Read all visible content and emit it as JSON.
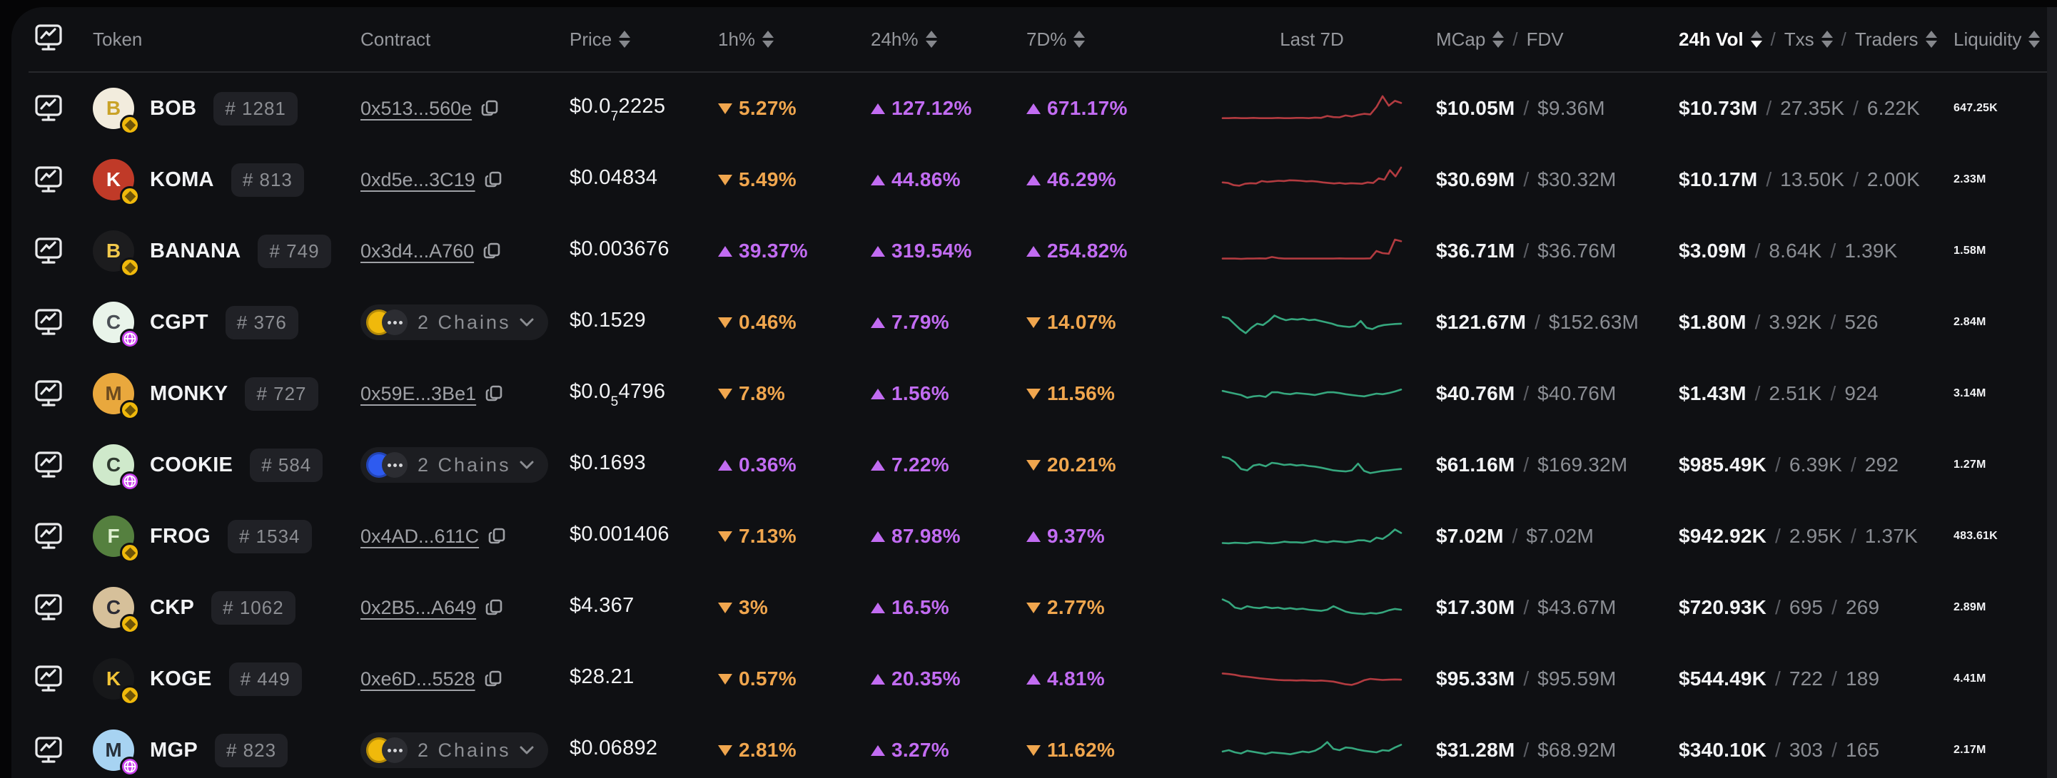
{
  "ui": {
    "separator": "/"
  },
  "colors": {
    "up": "#c26cf2",
    "down": "#f0a64e",
    "spark_red": "#b23b40",
    "spark_green": "#36a77e"
  },
  "header": {
    "token": "Token",
    "contract": "Contract",
    "price": "Price",
    "h1": "1h%",
    "h24": "24h%",
    "d7": "7D%",
    "last7d": "Last 7D",
    "mcap": "MCap",
    "fdv": "FDV",
    "vol": "24h Vol",
    "txs": "Txs",
    "traders": "Traders",
    "liquidity": "Liquidity",
    "active_sort": "24h Vol",
    "active_dir": "desc"
  },
  "rows": [
    {
      "name": "BOB",
      "rank": "# 1281",
      "avatar": {
        "letter": "B",
        "bg": "#f2ecdd",
        "fg": "#c9a227",
        "badge": "bnb"
      },
      "contract": {
        "type": "address",
        "text": "0x513...560e"
      },
      "price": {
        "head": "$0.0",
        "sub": "7",
        "tail": "2225"
      },
      "h1": {
        "dir": "down",
        "value": "5.27%"
      },
      "h24": {
        "dir": "up",
        "value": "127.12%"
      },
      "d7": {
        "dir": "up",
        "value": "671.17%"
      },
      "spark": {
        "trend": "red",
        "points": [
          14,
          14,
          15,
          14,
          14,
          15,
          14,
          14,
          14,
          15,
          14,
          14,
          15,
          15,
          14,
          16,
          15,
          22,
          18,
          17,
          24,
          20,
          26,
          30,
          28,
          55,
          95,
          60,
          78,
          70
        ]
      },
      "mcap": "$10.05M",
      "fdv": "$9.36M",
      "vol": "$10.73M",
      "txs": "27.35K",
      "traders": "6.22K",
      "liquidity": "647.25K"
    },
    {
      "name": "KOMA",
      "rank": "# 813",
      "avatar": {
        "letter": "K",
        "bg": "#c03a28",
        "fg": "#ffffff",
        "badge": "bnb"
      },
      "contract": {
        "type": "address",
        "text": "0xd5e...3C19"
      },
      "price": {
        "head": "$0.04834",
        "sub": "",
        "tail": ""
      },
      "h1": {
        "dir": "down",
        "value": "5.49%"
      },
      "h24": {
        "dir": "up",
        "value": "44.86%"
      },
      "d7": {
        "dir": "up",
        "value": "46.29%"
      },
      "spark": {
        "trend": "red",
        "points": [
          40,
          38,
          30,
          28,
          35,
          37,
          36,
          45,
          42,
          44,
          46,
          45,
          48,
          47,
          46,
          44,
          45,
          43,
          40,
          38,
          36,
          38,
          35,
          37,
          36,
          35,
          40,
          38,
          55,
          50,
          85,
          62,
          95
        ]
      },
      "mcap": "$30.69M",
      "fdv": "$30.32M",
      "vol": "$10.17M",
      "txs": "13.50K",
      "traders": "2.00K",
      "liquidity": "2.33M"
    },
    {
      "name": "BANANA",
      "rank": "# 749",
      "avatar": {
        "letter": "B",
        "bg": "#1c1c1e",
        "fg": "#f2c94c",
        "badge": "bnb"
      },
      "contract": {
        "type": "address",
        "text": "0x3d4...A760"
      },
      "price": {
        "head": "$0.003676",
        "sub": "",
        "tail": ""
      },
      "h1": {
        "dir": "up",
        "value": "39.37%"
      },
      "h24": {
        "dir": "up",
        "value": "319.54%"
      },
      "d7": {
        "dir": "up",
        "value": "254.82%"
      },
      "spark": {
        "trend": "red",
        "points": [
          22,
          22,
          22,
          21,
          22,
          22,
          23,
          22,
          28,
          24,
          22,
          22,
          22,
          22,
          22,
          22,
          22,
          22,
          22,
          23,
          22,
          22,
          22,
          22,
          23,
          50,
          42,
          40,
          92,
          86
        ]
      },
      "mcap": "$36.71M",
      "fdv": "$36.76M",
      "vol": "$3.09M",
      "txs": "8.64K",
      "traders": "1.39K",
      "liquidity": "1.58M"
    },
    {
      "name": "CGPT",
      "rank": "# 376",
      "avatar": {
        "letter": "C",
        "bg": "#e9f4ea",
        "fg": "#4a4f55",
        "badge": "globe"
      },
      "contract": {
        "type": "chains",
        "text": "2 Chains",
        "coin": "#f0b90b"
      },
      "price": {
        "head": "$0.1529",
        "sub": "",
        "tail": ""
      },
      "h1": {
        "dir": "down",
        "value": "0.46%"
      },
      "h24": {
        "dir": "up",
        "value": "7.79%"
      },
      "d7": {
        "dir": "down",
        "value": "14.07%"
      },
      "spark": {
        "trend": "green",
        "points": [
          70,
          65,
          45,
          25,
          10,
          30,
          45,
          40,
          55,
          75,
          65,
          58,
          62,
          60,
          63,
          58,
          60,
          55,
          50,
          45,
          38,
          35,
          33,
          36,
          55,
          30,
          25,
          35,
          40,
          42,
          44,
          45
        ]
      },
      "mcap": "$121.67M",
      "fdv": "$152.63M",
      "vol": "$1.80M",
      "txs": "3.92K",
      "traders": "526",
      "liquidity": "2.84M"
    },
    {
      "name": "MONKY",
      "rank": "# 727",
      "avatar": {
        "letter": "M",
        "bg": "#e9a83d",
        "fg": "#6b4a1f",
        "badge": "bnb"
      },
      "contract": {
        "type": "address",
        "text": "0x59E...3Be1"
      },
      "price": {
        "head": "$0.0",
        "sub": "5",
        "tail": "4796"
      },
      "h1": {
        "dir": "down",
        "value": "7.8%"
      },
      "h24": {
        "dir": "up",
        "value": "1.56%"
      },
      "d7": {
        "dir": "down",
        "value": "11.56%"
      },
      "spark": {
        "trend": "green",
        "points": [
          60,
          55,
          50,
          45,
          35,
          40,
          42,
          38,
          55,
          55,
          50,
          48,
          52,
          50,
          48,
          45,
          50,
          55,
          55,
          52,
          48,
          45,
          42,
          40,
          45,
          50,
          48,
          52,
          58,
          65
        ]
      },
      "mcap": "$40.76M",
      "fdv": "$40.76M",
      "vol": "$1.43M",
      "txs": "2.51K",
      "traders": "924",
      "liquidity": "3.14M"
    },
    {
      "name": "COOKIE",
      "rank": "# 584",
      "avatar": {
        "letter": "C",
        "bg": "#cfe9cb",
        "fg": "#2f3a2f",
        "badge": "globe"
      },
      "contract": {
        "type": "chains",
        "text": "2 Chains",
        "coin": "#2e5bf0"
      },
      "price": {
        "head": "$0.1693",
        "sub": "",
        "tail": ""
      },
      "h1": {
        "dir": "up",
        "value": "0.36%"
      },
      "h24": {
        "dir": "up",
        "value": "7.22%"
      },
      "d7": {
        "dir": "down",
        "value": "20.21%"
      },
      "spark": {
        "trend": "green",
        "points": [
          80,
          75,
          60,
          35,
          30,
          48,
          52,
          45,
          58,
          55,
          50,
          52,
          48,
          50,
          46,
          44,
          40,
          35,
          30,
          28,
          26,
          30,
          55,
          28,
          20,
          24,
          28,
          30,
          33,
          35
        ]
      },
      "mcap": "$61.16M",
      "fdv": "$169.32M",
      "vol": "$985.49K",
      "txs": "6.39K",
      "traders": "292",
      "liquidity": "1.27M"
    },
    {
      "name": "FROG",
      "rank": "# 1534",
      "avatar": {
        "letter": "F",
        "bg": "#55803f",
        "fg": "#dff0d0",
        "badge": "bnb"
      },
      "contract": {
        "type": "address",
        "text": "0x4AD...611C"
      },
      "price": {
        "head": "$0.001406",
        "sub": "",
        "tail": ""
      },
      "h1": {
        "dir": "down",
        "value": "7.13%"
      },
      "h24": {
        "dir": "up",
        "value": "87.98%"
      },
      "d7": {
        "dir": "up",
        "value": "9.37%"
      },
      "spark": {
        "trend": "green",
        "points": [
          25,
          24,
          26,
          25,
          24,
          28,
          28,
          25,
          24,
          26,
          30,
          28,
          28,
          26,
          30,
          35,
          30,
          28,
          32,
          30,
          28,
          30,
          35,
          35,
          30,
          45,
          40,
          55,
          75,
          62
        ]
      },
      "mcap": "$7.02M",
      "fdv": "$7.02M",
      "vol": "$942.92K",
      "txs": "2.95K",
      "traders": "1.37K",
      "liquidity": "483.61K"
    },
    {
      "name": "CKP",
      "rank": "# 1062",
      "avatar": {
        "letter": "C",
        "bg": "#d6c09a",
        "fg": "#2b2b35",
        "badge": "bnb"
      },
      "contract": {
        "type": "address",
        "text": "0x2B5...A649"
      },
      "price": {
        "head": "$4.367",
        "sub": "",
        "tail": ""
      },
      "h1": {
        "dir": "down",
        "value": "3%"
      },
      "h24": {
        "dir": "up",
        "value": "16.5%"
      },
      "d7": {
        "dir": "down",
        "value": "2.77%"
      },
      "spark": {
        "trend": "green",
        "points": [
          80,
          70,
          50,
          45,
          55,
          50,
          48,
          52,
          48,
          50,
          45,
          48,
          44,
          46,
          42,
          40,
          38,
          42,
          55,
          45,
          35,
          30,
          28,
          26,
          30,
          28,
          32,
          40,
          45,
          42
        ]
      },
      "mcap": "$17.30M",
      "fdv": "$43.67M",
      "vol": "$720.93K",
      "txs": "695",
      "traders": "269",
      "liquidity": "2.89M"
    },
    {
      "name": "KOGE",
      "rank": "# 449",
      "avatar": {
        "letter": "K",
        "bg": "#17181a",
        "fg": "#f2c437",
        "badge": "bnb"
      },
      "contract": {
        "type": "address",
        "text": "0xe6D...5528"
      },
      "price": {
        "head": "$28.21",
        "sub": "",
        "tail": ""
      },
      "h1": {
        "dir": "down",
        "value": "0.57%"
      },
      "h24": {
        "dir": "up",
        "value": "20.35%"
      },
      "d7": {
        "dir": "up",
        "value": "4.81%"
      },
      "spark": {
        "trend": "red",
        "points": [
          70,
          68,
          65,
          60,
          58,
          55,
          52,
          50,
          48,
          46,
          45,
          45,
          44,
          45,
          44,
          43,
          44,
          42,
          40,
          35,
          30,
          28,
          35,
          45,
          50,
          48,
          46,
          47,
          48,
          47
        ]
      },
      "mcap": "$95.33M",
      "fdv": "$95.59M",
      "vol": "$544.49K",
      "txs": "722",
      "traders": "189",
      "liquidity": "4.41M"
    },
    {
      "name": "MGP",
      "rank": "# 823",
      "avatar": {
        "letter": "M",
        "bg": "#a7d3f2",
        "fg": "#27303a",
        "badge": "globe"
      },
      "contract": {
        "type": "chains",
        "text": "2 Chains",
        "coin": "#f0b90b"
      },
      "price": {
        "head": "$0.06892",
        "sub": "",
        "tail": ""
      },
      "h1": {
        "dir": "down",
        "value": "2.81%"
      },
      "h24": {
        "dir": "up",
        "value": "3.27%"
      },
      "d7": {
        "dir": "down",
        "value": "11.62%"
      },
      "spark": {
        "trend": "green",
        "points": [
          45,
          50,
          42,
          38,
          48,
          44,
          40,
          36,
          42,
          40,
          38,
          35,
          40,
          45,
          42,
          48,
          60,
          80,
          55,
          50,
          60,
          58,
          52,
          48,
          45,
          42,
          50,
          48,
          60,
          70
        ]
      },
      "mcap": "$31.28M",
      "fdv": "$68.92M",
      "vol": "$340.10K",
      "txs": "303",
      "traders": "165",
      "liquidity": "2.17M"
    }
  ]
}
